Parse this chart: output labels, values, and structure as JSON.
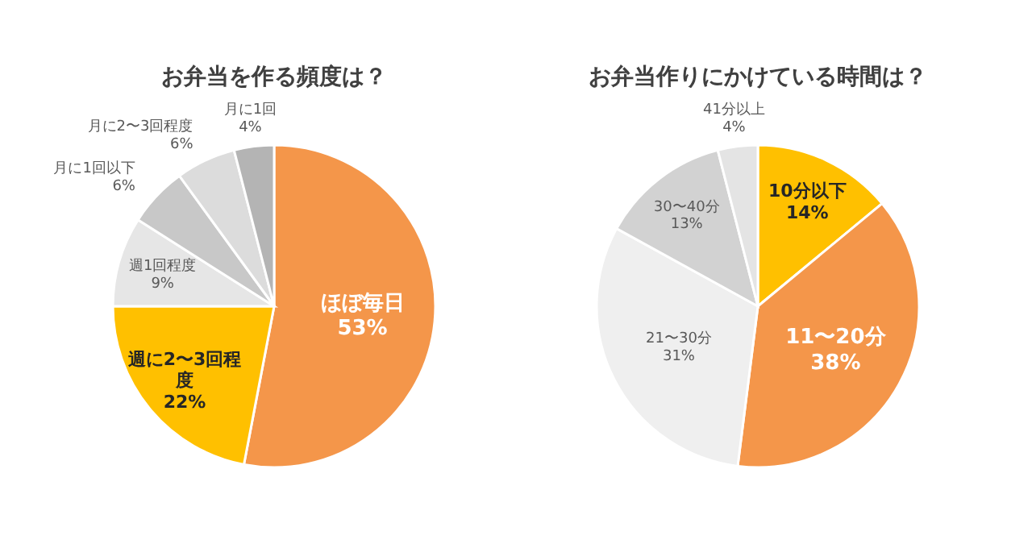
{
  "chart_data": [
    {
      "type": "pie",
      "title": "お弁当を作る頻度は？",
      "categories": [
        "ほぼ毎日",
        "週に2〜3回程度",
        "週1回程度",
        "月に1回以下",
        "月に2〜3回程度",
        "月に1回"
      ],
      "values": [
        53,
        22,
        9,
        6,
        6,
        4
      ],
      "colors": [
        "#f4964a",
        "#ffc000",
        "#e6e6e6",
        "#c8c8c8",
        "#dcdcdc",
        "#b4b4b4"
      ],
      "value_labels": [
        "53%",
        "22%",
        "9%",
        "6%",
        "6%",
        "4%"
      ]
    },
    {
      "type": "pie",
      "title": "お弁当作りにかけている時間は？",
      "categories": [
        "10分以下",
        "11〜20分",
        "21〜30分",
        "30〜40分",
        "41分以上"
      ],
      "values": [
        14,
        38,
        31,
        13,
        4
      ],
      "colors": [
        "#ffc000",
        "#f4964a",
        "#efefef",
        "#d2d2d2",
        "#e4e4e4"
      ],
      "value_labels": [
        "14%",
        "38%",
        "31%",
        "13%",
        "4%"
      ]
    }
  ]
}
